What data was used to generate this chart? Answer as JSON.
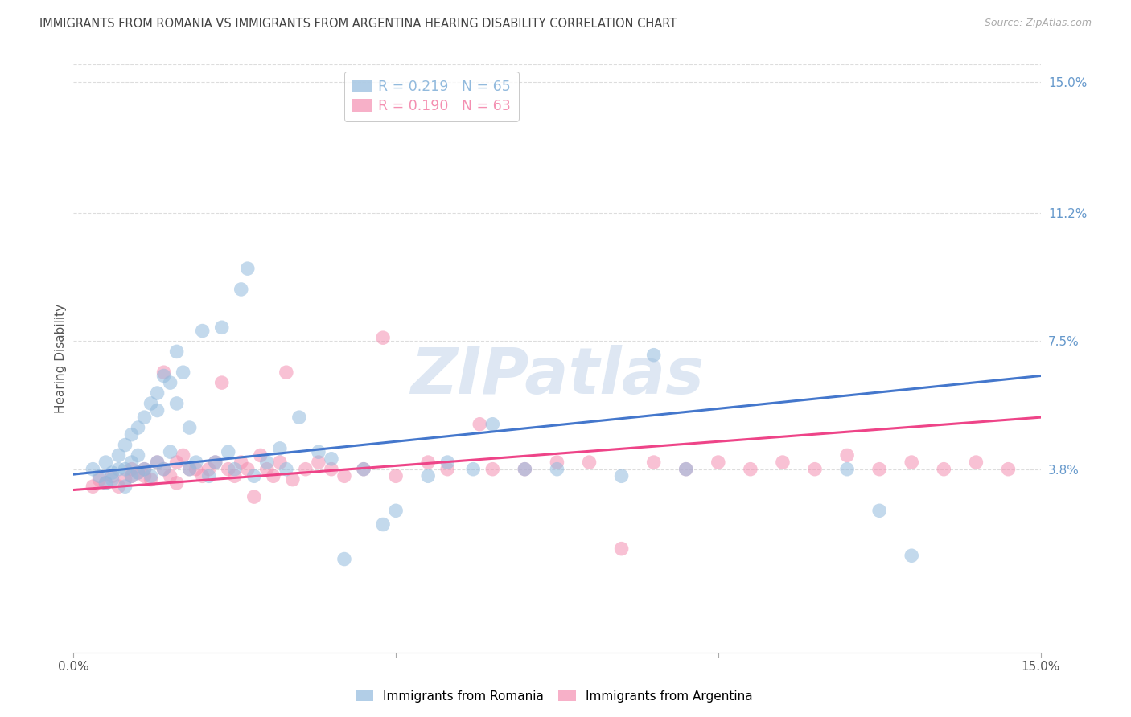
{
  "title": "IMMIGRANTS FROM ROMANIA VS IMMIGRANTS FROM ARGENTINA HEARING DISABILITY CORRELATION CHART",
  "source": "Source: ZipAtlas.com",
  "ylabel": "Hearing Disability",
  "right_ytick_labels": [
    "15.0%",
    "11.2%",
    "7.5%",
    "3.8%"
  ],
  "right_ytick_values": [
    0.15,
    0.112,
    0.075,
    0.038
  ],
  "xmin": 0.0,
  "xmax": 0.15,
  "ymin": -0.015,
  "ymax": 0.155,
  "romania_color": "#92BADD",
  "argentina_color": "#F48FB1",
  "romania_R": 0.219,
  "romania_N": 65,
  "argentina_R": 0.19,
  "argentina_N": 63,
  "legend_label_romania": "Immigrants from Romania",
  "legend_label_argentina": "Immigrants from Argentina",
  "watermark": "ZIPatlas",
  "romania_scatter_x": [
    0.003,
    0.004,
    0.005,
    0.005,
    0.006,
    0.006,
    0.007,
    0.007,
    0.008,
    0.008,
    0.008,
    0.009,
    0.009,
    0.009,
    0.01,
    0.01,
    0.01,
    0.011,
    0.011,
    0.012,
    0.012,
    0.013,
    0.013,
    0.013,
    0.014,
    0.014,
    0.015,
    0.015,
    0.016,
    0.016,
    0.017,
    0.018,
    0.018,
    0.019,
    0.02,
    0.021,
    0.022,
    0.023,
    0.024,
    0.025,
    0.026,
    0.027,
    0.028,
    0.03,
    0.032,
    0.033,
    0.035,
    0.038,
    0.04,
    0.042,
    0.045,
    0.048,
    0.05,
    0.055,
    0.058,
    0.062,
    0.065,
    0.07,
    0.075,
    0.085,
    0.09,
    0.095,
    0.12,
    0.125,
    0.13
  ],
  "romania_scatter_y": [
    0.038,
    0.036,
    0.034,
    0.04,
    0.035,
    0.037,
    0.038,
    0.042,
    0.033,
    0.038,
    0.045,
    0.036,
    0.04,
    0.048,
    0.037,
    0.042,
    0.05,
    0.038,
    0.053,
    0.036,
    0.057,
    0.04,
    0.055,
    0.06,
    0.038,
    0.065,
    0.043,
    0.063,
    0.057,
    0.072,
    0.066,
    0.038,
    0.05,
    0.04,
    0.078,
    0.036,
    0.04,
    0.079,
    0.043,
    0.038,
    0.09,
    0.096,
    0.036,
    0.04,
    0.044,
    0.038,
    0.053,
    0.043,
    0.041,
    0.012,
    0.038,
    0.022,
    0.026,
    0.036,
    0.04,
    0.038,
    0.051,
    0.038,
    0.038,
    0.036,
    0.071,
    0.038,
    0.038,
    0.026,
    0.013
  ],
  "argentina_scatter_x": [
    0.003,
    0.004,
    0.005,
    0.006,
    0.007,
    0.008,
    0.009,
    0.009,
    0.01,
    0.011,
    0.011,
    0.012,
    0.013,
    0.014,
    0.014,
    0.015,
    0.016,
    0.016,
    0.017,
    0.018,
    0.019,
    0.02,
    0.021,
    0.022,
    0.023,
    0.024,
    0.025,
    0.026,
    0.027,
    0.028,
    0.029,
    0.03,
    0.031,
    0.032,
    0.033,
    0.034,
    0.036,
    0.038,
    0.04,
    0.042,
    0.045,
    0.048,
    0.05,
    0.055,
    0.058,
    0.063,
    0.065,
    0.07,
    0.075,
    0.08,
    0.085,
    0.09,
    0.095,
    0.1,
    0.105,
    0.11,
    0.115,
    0.12,
    0.125,
    0.13,
    0.135,
    0.14,
    0.145
  ],
  "argentina_scatter_y": [
    0.033,
    0.035,
    0.034,
    0.036,
    0.033,
    0.035,
    0.036,
    0.038,
    0.037,
    0.036,
    0.038,
    0.035,
    0.04,
    0.038,
    0.066,
    0.036,
    0.034,
    0.04,
    0.042,
    0.038,
    0.038,
    0.036,
    0.038,
    0.04,
    0.063,
    0.038,
    0.036,
    0.04,
    0.038,
    0.03,
    0.042,
    0.038,
    0.036,
    0.04,
    0.066,
    0.035,
    0.038,
    0.04,
    0.038,
    0.036,
    0.038,
    0.076,
    0.036,
    0.04,
    0.038,
    0.051,
    0.038,
    0.038,
    0.04,
    0.04,
    0.015,
    0.04,
    0.038,
    0.04,
    0.038,
    0.04,
    0.038,
    0.042,
    0.038,
    0.04,
    0.038,
    0.04,
    0.038
  ],
  "blue_line_x": [
    0.0,
    0.15
  ],
  "blue_line_y": [
    0.0365,
    0.065
  ],
  "pink_line_x": [
    0.0,
    0.15
  ],
  "pink_line_y": [
    0.032,
    0.053
  ],
  "grid_color": "#DDDDDD",
  "title_color": "#444444",
  "right_axis_color": "#6699CC",
  "background_color": "#FFFFFF",
  "blue_line_color": "#4477CC",
  "pink_line_color": "#EE4488"
}
